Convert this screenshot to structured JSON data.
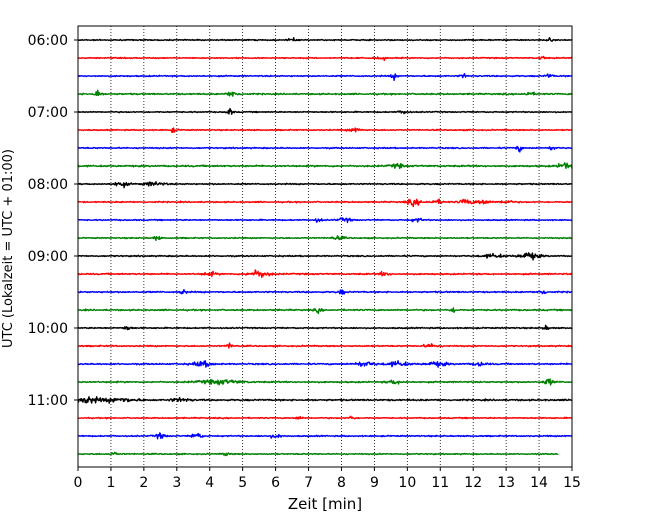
{
  "chart_data": {
    "type": "line",
    "subtype": "helicorder",
    "xlabel": "Zeit  [min]",
    "ylabel": "UTC (Lokalzeit = UTC + 01:00)",
    "xlim": [
      0,
      15
    ],
    "x_ticks": [
      "0",
      "1",
      "2",
      "3",
      "4",
      "5",
      "6",
      "7",
      "8",
      "9",
      "10",
      "11",
      "12",
      "13",
      "14",
      "15"
    ],
    "y_tick_labels": [
      "06:00",
      "07:00",
      "08:00",
      "09:00",
      "10:00",
      "11:00"
    ],
    "grid": "vertical dotted at each minute",
    "trace_colors": [
      "#000000",
      "#ff0000",
      "#0000ff",
      "#008000"
    ],
    "traces": [
      {
        "start": "06:00",
        "amp": 0.18,
        "bursts": [
          {
            "t": 6.5,
            "a": 0.6,
            "w": 0.1
          },
          {
            "t": 14.3,
            "a": 0.5,
            "w": 0.1
          }
        ]
      },
      {
        "start": "06:15",
        "amp": 0.18,
        "bursts": [
          {
            "t": 9.2,
            "a": 0.6,
            "w": 0.15
          },
          {
            "t": 14.1,
            "a": 0.5,
            "w": 0.1
          }
        ]
      },
      {
        "start": "06:30",
        "amp": 0.2,
        "bursts": [
          {
            "t": 9.6,
            "a": 0.9,
            "w": 0.1
          },
          {
            "t": 11.7,
            "a": 0.6,
            "w": 0.1
          },
          {
            "t": 14.3,
            "a": 0.7,
            "w": 0.1
          }
        ]
      },
      {
        "start": "06:45",
        "amp": 0.22,
        "bursts": [
          {
            "t": 0.6,
            "a": 1.3,
            "w": 0.1
          },
          {
            "t": 4.7,
            "a": 1.0,
            "w": 0.15
          },
          {
            "t": 13.7,
            "a": 0.6,
            "w": 0.15
          }
        ]
      },
      {
        "start": "07:00",
        "amp": 0.18,
        "bursts": [
          {
            "t": 4.6,
            "a": 1.0,
            "w": 0.1
          },
          {
            "t": 9.9,
            "a": 0.6,
            "w": 0.15
          }
        ]
      },
      {
        "start": "07:15",
        "amp": 0.18,
        "bursts": [
          {
            "t": 2.9,
            "a": 0.7,
            "w": 0.1
          },
          {
            "t": 8.4,
            "a": 0.6,
            "w": 0.2
          }
        ]
      },
      {
        "start": "07:30",
        "amp": 0.2,
        "bursts": [
          {
            "t": 13.4,
            "a": 0.9,
            "w": 0.1
          },
          {
            "t": 14.4,
            "a": 0.6,
            "w": 0.1
          }
        ]
      },
      {
        "start": "07:45",
        "amp": 0.25,
        "bursts": [
          {
            "t": 9.7,
            "a": 0.6,
            "w": 0.2
          },
          {
            "t": 14.8,
            "a": 1.0,
            "w": 0.2
          }
        ]
      },
      {
        "start": "08:00",
        "amp": 0.2,
        "bursts": [
          {
            "t": 1.3,
            "a": 0.9,
            "w": 0.2
          },
          {
            "t": 2.3,
            "a": 0.6,
            "w": 0.3
          }
        ]
      },
      {
        "start": "08:15",
        "amp": 0.2,
        "bursts": [
          {
            "t": 10.2,
            "a": 1.0,
            "w": 0.2
          },
          {
            "t": 10.9,
            "a": 0.6,
            "w": 0.2
          },
          {
            "t": 11.8,
            "a": 0.9,
            "w": 0.2
          },
          {
            "t": 12.3,
            "a": 0.8,
            "w": 0.2
          },
          {
            "t": 13.0,
            "a": 0.5,
            "w": 0.2
          }
        ]
      },
      {
        "start": "08:30",
        "amp": 0.18,
        "bursts": [
          {
            "t": 7.3,
            "a": 0.7,
            "w": 0.1
          },
          {
            "t": 8.1,
            "a": 0.6,
            "w": 0.2
          },
          {
            "t": 10.3,
            "a": 0.5,
            "w": 0.2
          }
        ]
      },
      {
        "start": "08:45",
        "amp": 0.18,
        "bursts": [
          {
            "t": 2.4,
            "a": 0.7,
            "w": 0.1
          },
          {
            "t": 7.9,
            "a": 0.5,
            "w": 0.2
          }
        ]
      },
      {
        "start": "09:00",
        "amp": 0.2,
        "bursts": [
          {
            "t": 12.6,
            "a": 0.6,
            "w": 0.3
          },
          {
            "t": 13.7,
            "a": 1.1,
            "w": 0.3
          }
        ]
      },
      {
        "start": "09:15",
        "amp": 0.22,
        "bursts": [
          {
            "t": 4.0,
            "a": 0.6,
            "w": 0.2
          },
          {
            "t": 5.5,
            "a": 1.2,
            "w": 0.3
          },
          {
            "t": 9.3,
            "a": 0.6,
            "w": 0.15
          }
        ]
      },
      {
        "start": "09:30",
        "amp": 0.22,
        "bursts": [
          {
            "t": 3.2,
            "a": 0.8,
            "w": 0.1
          },
          {
            "t": 8.0,
            "a": 0.8,
            "w": 0.1
          },
          {
            "t": 14.1,
            "a": 1.0,
            "w": 0.1
          }
        ]
      },
      {
        "start": "09:45",
        "amp": 0.22,
        "bursts": [
          {
            "t": 7.3,
            "a": 0.7,
            "w": 0.1
          },
          {
            "t": 11.4,
            "a": 0.7,
            "w": 0.1
          }
        ]
      },
      {
        "start": "10:00",
        "amp": 0.2,
        "bursts": [
          {
            "t": 1.5,
            "a": 0.8,
            "w": 0.1
          },
          {
            "t": 14.2,
            "a": 0.7,
            "w": 0.1
          }
        ]
      },
      {
        "start": "10:15",
        "amp": 0.2,
        "bursts": [
          {
            "t": 4.6,
            "a": 0.8,
            "w": 0.1
          },
          {
            "t": 10.7,
            "a": 0.6,
            "w": 0.2
          }
        ]
      },
      {
        "start": "10:30",
        "amp": 0.22,
        "bursts": [
          {
            "t": 3.8,
            "a": 0.8,
            "w": 0.3
          },
          {
            "t": 8.7,
            "a": 0.7,
            "w": 0.3
          },
          {
            "t": 9.7,
            "a": 0.8,
            "w": 0.3
          },
          {
            "t": 10.9,
            "a": 0.7,
            "w": 0.3
          },
          {
            "t": 12.2,
            "a": 0.6,
            "w": 0.2
          }
        ]
      },
      {
        "start": "10:45",
        "amp": 0.22,
        "bursts": [
          {
            "t": 4.3,
            "a": 0.7,
            "w": 0.6
          },
          {
            "t": 9.6,
            "a": 0.6,
            "w": 0.2
          },
          {
            "t": 14.3,
            "a": 0.9,
            "w": 0.15
          }
        ]
      },
      {
        "start": "11:00",
        "amp": 0.25,
        "bursts": [
          {
            "t": 0.3,
            "a": 1.1,
            "w": 0.3
          },
          {
            "t": 1.2,
            "a": 0.7,
            "w": 0.5
          },
          {
            "t": 3.1,
            "a": 0.5,
            "w": 0.3
          }
        ]
      },
      {
        "start": "11:15",
        "amp": 0.18,
        "bursts": [
          {
            "t": 6.7,
            "a": 0.6,
            "w": 0.1
          },
          {
            "t": 8.3,
            "a": 0.6,
            "w": 0.1
          }
        ]
      },
      {
        "start": "11:30",
        "amp": 0.2,
        "bursts": [
          {
            "t": 2.5,
            "a": 0.8,
            "w": 0.15
          },
          {
            "t": 3.6,
            "a": 1.0,
            "w": 0.15
          },
          {
            "t": 6.0,
            "a": 0.5,
            "w": 0.2
          }
        ]
      },
      {
        "start": "11:45",
        "amp": 0.18,
        "end_min": 14.6,
        "bursts": [
          {
            "t": 1.1,
            "a": 0.6,
            "w": 0.1
          },
          {
            "t": 4.5,
            "a": 0.5,
            "w": 0.1
          }
        ]
      }
    ]
  }
}
